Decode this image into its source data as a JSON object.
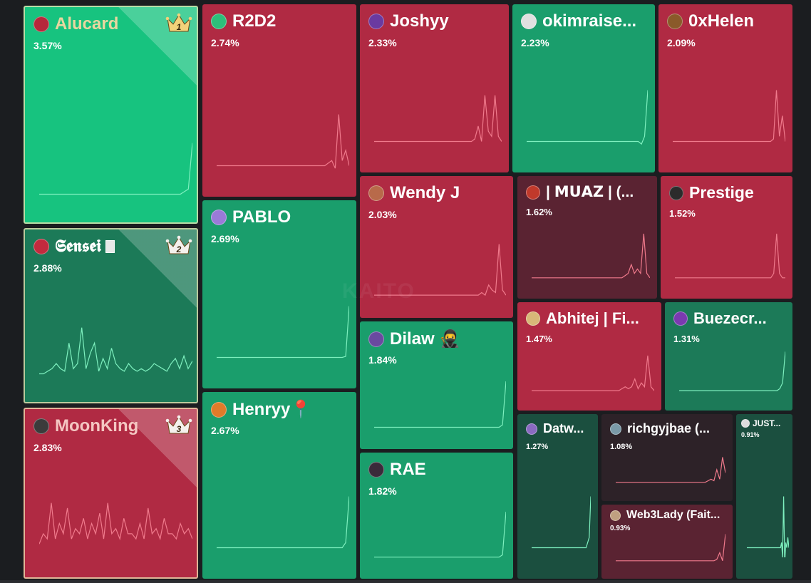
{
  "watermark": "KAITO",
  "colors": {
    "green_bright": "#17c37f",
    "green": "#1a9e6c",
    "green_dark": "#1c7a58",
    "green_deep": "#1b4f3f",
    "red": "#b02a43",
    "red_dark": "#7a2237",
    "maroon": "#5a2332",
    "maroon_dark": "#2d2228"
  },
  "tiles": [
    {
      "id": "alucard",
      "name": "Alucard",
      "pct": "3.57%",
      "rank": "1",
      "icon": "vampire-avatar-icon",
      "color": "#17c37f",
      "name_color": "#e8d7a0",
      "avatar": "#b5283b",
      "spark": [
        0,
        0,
        0,
        0,
        0,
        0,
        0,
        0,
        0,
        0,
        0,
        0,
        0,
        0,
        0,
        0,
        0,
        0,
        0,
        0,
        0,
        0,
        0,
        0,
        0,
        0,
        0,
        0,
        0,
        0,
        0,
        0,
        0,
        0,
        0,
        0,
        0.05,
        0.1,
        1
      ]
    },
    {
      "id": "sensei",
      "name": "𝕾𝖊𝖓𝖘𝖊𝖎",
      "pct": "2.88%",
      "rank": "2",
      "icon": "red-hair-avatar-icon",
      "color": "#1c7a58",
      "name_color": "#ffffff",
      "avatar": "#c22a3e",
      "spark": [
        0,
        0,
        0.05,
        0.1,
        0.2,
        0.1,
        0.05,
        0.6,
        0.1,
        0.2,
        0.9,
        0.1,
        0.4,
        0.6,
        0.05,
        0.3,
        0.1,
        0.5,
        0.2,
        0.1,
        0.05,
        0.2,
        0.1,
        0.05,
        0.1,
        0.05,
        0.1,
        0.2,
        0.15,
        0.1,
        0.05,
        0.2,
        0.3,
        0.1,
        0.35,
        0.1,
        0.25
      ]
    },
    {
      "id": "moonking",
      "name": "MoonKing",
      "pct": "2.83%",
      "rank": "3",
      "icon": "moonking-avatar-icon",
      "color": "#b02a43",
      "name_color": "#f4c6c2",
      "avatar": "#3b3b3b",
      "spark": [
        0.1,
        0.3,
        0.2,
        0.9,
        0.2,
        0.5,
        0.3,
        0.8,
        0.2,
        0.4,
        0.3,
        0.6,
        0.2,
        0.5,
        0.3,
        0.7,
        0.2,
        0.9,
        0.3,
        0.4,
        0.2,
        0.6,
        0.3,
        0.3,
        0.2,
        0.5,
        0.2,
        0.8,
        0.3,
        0.4,
        0.2,
        0.6,
        0.3,
        0.3,
        0.2,
        0.5,
        0.3,
        0.4,
        0.2
      ]
    },
    {
      "id": "r2d2",
      "name": "R2D2",
      "pct": "2.74%",
      "color": "#b02a43",
      "avatar": "#2dbf7a",
      "icon": "robot-avatar-icon",
      "spark": [
        0,
        0,
        0,
        0,
        0,
        0,
        0,
        0,
        0,
        0,
        0,
        0,
        0,
        0,
        0,
        0,
        0,
        0,
        0,
        0,
        0,
        0,
        0,
        0,
        0,
        0,
        0,
        0,
        0,
        0,
        0,
        0,
        0.05,
        0.1,
        -0.05,
        1,
        0.1,
        0.3,
        0
      ]
    },
    {
      "id": "pablo",
      "name": "PABLO",
      "pct": "2.69%",
      "color": "#1a9e6c",
      "avatar": "#9a7ad8",
      "icon": "pablo-avatar-icon",
      "spark": [
        0,
        0,
        0,
        0,
        0,
        0,
        0,
        0,
        0,
        0,
        0,
        0,
        0,
        0,
        0,
        0,
        0,
        0,
        0,
        0,
        0,
        0,
        0,
        0,
        0,
        0,
        0,
        0,
        0,
        0,
        0,
        0,
        0,
        0,
        0,
        0,
        0,
        0.02,
        1
      ]
    },
    {
      "id": "henryy",
      "name": "Henryy📍",
      "pct": "2.67%",
      "color": "#1a9e6c",
      "avatar": "#e07b2a",
      "icon": "henryy-avatar-icon",
      "spark": [
        0,
        0,
        0,
        0,
        0,
        0,
        0,
        0,
        0,
        0,
        0,
        0,
        0,
        0,
        0,
        0,
        0,
        0,
        0,
        0,
        0,
        0,
        0,
        0,
        0,
        0,
        0,
        0,
        0,
        0,
        0,
        0,
        0,
        0,
        0,
        0,
        0,
        0.1,
        1
      ]
    },
    {
      "id": "joshyy",
      "name": "Joshyy",
      "pct": "2.33%",
      "color": "#b02a43",
      "avatar": "#6a3aa0",
      "icon": "joshyy-avatar-icon",
      "spark": [
        0,
        0,
        0,
        0,
        0,
        0,
        0,
        0,
        0,
        0,
        0,
        0,
        0,
        0,
        0,
        0,
        0,
        0,
        0,
        0,
        0,
        0,
        0,
        0,
        0,
        0,
        0,
        0,
        0,
        0,
        0.05,
        0.3,
        0,
        0.9,
        0.2,
        0.1,
        0.9,
        0.1,
        0
      ]
    },
    {
      "id": "okimraise",
      "name": "okimraise...",
      "pct": "2.23%",
      "color": "#1a9e6c",
      "avatar": "#e0e0e0",
      "icon": "sunglasses-avatar-icon",
      "spark": [
        0,
        0,
        0,
        0,
        0,
        0,
        0,
        0,
        0,
        0,
        0,
        0,
        0,
        0,
        0,
        0,
        0,
        0,
        0,
        0,
        0,
        0,
        0,
        0,
        0,
        0,
        0,
        0,
        0,
        0,
        0,
        0,
        0,
        0,
        0,
        0,
        -0.05,
        0.1,
        1
      ]
    },
    {
      "id": "oxhelen",
      "name": "0xHelen",
      "pct": "2.09%",
      "color": "#b02a43",
      "avatar": "#8a5a2a",
      "icon": "helen-avatar-icon",
      "spark": [
        0,
        0,
        0,
        0,
        0,
        0,
        0,
        0,
        0,
        0,
        0,
        0,
        0,
        0,
        0,
        0,
        0,
        0,
        0,
        0,
        0,
        0,
        0,
        0,
        0,
        0,
        0,
        0,
        0,
        0,
        0,
        0,
        0,
        0,
        0.05,
        1,
        0.1,
        0.5,
        0
      ]
    },
    {
      "id": "wendyj",
      "name": "Wendy J",
      "pct": "2.03%",
      "color": "#b02a43",
      "avatar": "#b86a4a",
      "icon": "wendy-avatar-icon",
      "spark": [
        0,
        0,
        0,
        0,
        0,
        0,
        0,
        0,
        0,
        0,
        0,
        0,
        0,
        0,
        0,
        0,
        0,
        0,
        0,
        0,
        0,
        0,
        0,
        0,
        0,
        0,
        0,
        0,
        0,
        0,
        0,
        0.05,
        0,
        0.2,
        0.1,
        0.05,
        1,
        0.1,
        0
      ]
    },
    {
      "id": "muaz",
      "name": "| 𝗠𝗨𝗔𝗭 | (...",
      "pct": "1.62%",
      "color": "#5a2332",
      "avatar": "#c0392b",
      "icon": "muaz-avatar-icon",
      "spark": [
        0,
        0,
        0,
        0,
        0,
        0,
        0,
        0,
        0,
        0,
        0,
        0,
        0,
        0,
        0,
        0,
        0,
        0,
        0,
        0,
        0,
        0,
        0,
        0,
        0,
        0,
        0,
        0,
        0,
        0,
        0.05,
        0.1,
        0.3,
        0.1,
        0.2,
        0.1,
        1,
        0.1,
        0
      ]
    },
    {
      "id": "prestige",
      "name": "Prestige",
      "pct": "1.52%",
      "color": "#b02a43",
      "avatar": "#2b2b2b",
      "icon": "prestige-avatar-icon",
      "spark": [
        0,
        0,
        0,
        0,
        0,
        0,
        0,
        0,
        0,
        0,
        0,
        0,
        0,
        0,
        0,
        0,
        0,
        0,
        0,
        0,
        0,
        0,
        0,
        0,
        0,
        0,
        0,
        0,
        0,
        0,
        0,
        0,
        0,
        0,
        0.1,
        1,
        0.1,
        0,
        0
      ]
    },
    {
      "id": "abhitej",
      "name": "Abhitej | Fi...",
      "pct": "1.47%",
      "color": "#b02a43",
      "avatar": "#d8b878",
      "icon": "abhitej-avatar-icon",
      "spark": [
        0,
        0,
        0,
        0,
        0,
        0,
        0,
        0,
        0,
        0,
        0,
        0,
        0,
        0,
        0,
        0,
        0,
        0,
        0,
        0,
        0,
        0,
        0,
        0,
        0,
        0,
        0,
        0,
        0.05,
        0.1,
        0.05,
        0.1,
        0.3,
        0.05,
        0.2,
        0.1,
        0.9,
        0.1,
        0
      ]
    },
    {
      "id": "buezecr",
      "name": "Buezecr...",
      "pct": "1.31%",
      "color": "#1c7a58",
      "avatar": "#7a3ab0",
      "icon": "buezecr-avatar-icon",
      "spark": [
        0,
        0,
        0,
        0,
        0,
        0,
        0,
        0,
        0,
        0,
        0,
        0,
        0,
        0,
        0,
        0,
        0,
        0,
        0,
        0,
        0,
        0,
        0,
        0,
        0,
        0,
        0,
        0,
        0,
        0,
        0,
        0,
        0,
        0,
        0,
        0,
        0.05,
        0.2,
        1
      ]
    },
    {
      "id": "dilaw",
      "name": "Dilaw 🥷",
      "pct": "1.84%",
      "color": "#1a9e6c",
      "avatar": "#6a4aa0",
      "icon": "dilaw-avatar-icon",
      "spark": [
        0,
        0,
        0,
        0,
        0,
        0,
        0,
        0,
        0,
        0,
        0,
        0,
        0,
        0,
        0,
        0,
        0,
        0,
        0,
        0,
        0,
        0,
        0,
        0,
        0,
        0,
        0,
        0,
        0,
        0,
        0,
        0,
        0,
        0,
        0,
        0,
        0,
        0.05,
        1
      ]
    },
    {
      "id": "rae",
      "name": "RAE",
      "pct": "1.82%",
      "color": "#1a9e6c",
      "avatar": "#3a2a3a",
      "icon": "rae-avatar-icon",
      "spark": [
        0,
        0,
        0,
        0,
        0,
        0,
        0,
        0,
        0,
        0,
        0,
        0,
        0,
        0,
        0,
        0,
        0,
        0,
        0,
        0,
        0,
        0,
        0,
        0,
        0,
        0,
        0,
        0,
        0,
        0,
        0,
        0,
        0,
        0,
        0,
        0,
        0,
        0.05,
        1
      ]
    },
    {
      "id": "datw",
      "name": "Datw...",
      "pct": "1.27%",
      "color": "#1b4f3f",
      "avatar": "#8a6ac0",
      "icon": "datw-avatar-icon",
      "spark": [
        0,
        0,
        0,
        0,
        0,
        0,
        0,
        0,
        0,
        0,
        0,
        0,
        0,
        0,
        0,
        0,
        0,
        0,
        0,
        0,
        0,
        0,
        0,
        0,
        0,
        0,
        0,
        0,
        0,
        0,
        0,
        0,
        0,
        0,
        0,
        0,
        0.1,
        0.2,
        1
      ]
    },
    {
      "id": "richgyjbae",
      "name": "richgyjbae (...",
      "pct": "1.08%",
      "color": "#2d2228",
      "avatar": "#7a9aa8",
      "icon": "richgyjbae-avatar-icon",
      "spark": [
        0,
        0,
        0,
        0,
        0,
        0,
        0,
        0,
        0,
        0,
        0,
        0,
        0,
        0,
        0,
        0,
        0,
        0,
        0,
        0,
        0,
        0,
        0,
        0,
        0,
        0,
        0,
        0,
        0,
        0,
        0,
        0,
        0.05,
        0.1,
        0.05,
        0.4,
        0.1,
        0.8,
        0.3
      ]
    },
    {
      "id": "web3lady",
      "name": "Web3Lady (Fait...",
      "pct": "0.93%",
      "color": "#5a2332",
      "avatar": "#c0a080",
      "icon": "web3lady-avatar-icon",
      "spark": [
        0,
        0,
        0,
        0,
        0,
        0,
        0,
        0,
        0,
        0,
        0,
        0,
        0,
        0,
        0,
        0,
        0,
        0,
        0,
        0,
        0,
        0,
        0,
        0,
        0,
        0,
        0,
        0,
        0,
        0,
        0,
        0,
        0,
        0,
        0,
        0.05,
        0.3,
        0,
        1
      ]
    },
    {
      "id": "just",
      "name": "JUST...",
      "pct": "0.91%",
      "color": "#1b4f3f",
      "avatar": "#dddddd",
      "icon": "just-avatar-icon",
      "spark": [
        0,
        0,
        0,
        0,
        0,
        0,
        0,
        0,
        0,
        0,
        0,
        0,
        0,
        0,
        0,
        0,
        0,
        0,
        0,
        0,
        0,
        0,
        0,
        0,
        0,
        0,
        0,
        0,
        0,
        0,
        0,
        0,
        0,
        0.1,
        -0.2,
        1,
        -0.3,
        0.1,
        0,
        0.2,
        0
      ]
    }
  ]
}
